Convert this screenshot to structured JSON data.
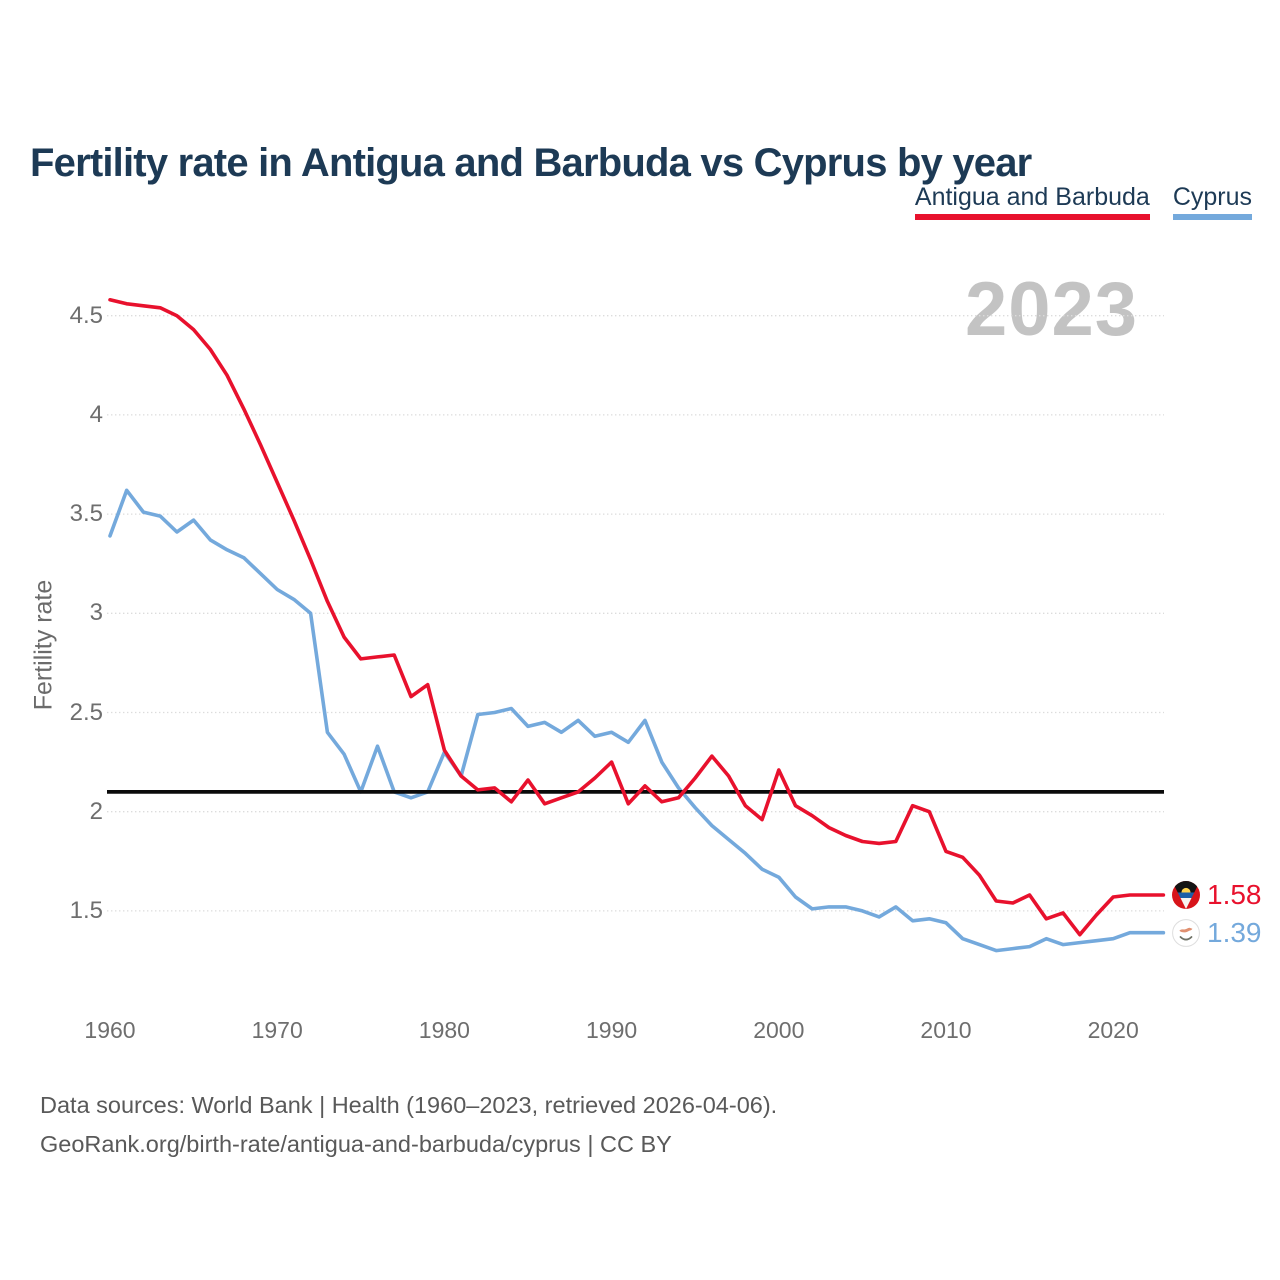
{
  "title": "Fertility rate in Antigua and Barbuda vs Cyprus by year",
  "watermark": {
    "text": "2023"
  },
  "legend": [
    {
      "label": "Antigua and Barbuda",
      "color": "#e8112d"
    },
    {
      "label": "Cyprus",
      "color": "#74a9dc"
    }
  ],
  "y_axis": {
    "label": "Fertility rate",
    "ticks": [
      {
        "value": 4.5,
        "label": "4.5"
      },
      {
        "value": 4.0,
        "label": "4"
      },
      {
        "value": 3.5,
        "label": "3.5"
      },
      {
        "value": 3.0,
        "label": "3"
      },
      {
        "value": 2.5,
        "label": "2.5"
      },
      {
        "value": 2.0,
        "label": "2"
      },
      {
        "value": 1.5,
        "label": "1.5"
      }
    ]
  },
  "x_axis": {
    "ticks": [
      {
        "value": 1960,
        "label": "1960"
      },
      {
        "value": 1970,
        "label": "1970"
      },
      {
        "value": 1980,
        "label": "1980"
      },
      {
        "value": 1990,
        "label": "1990"
      },
      {
        "value": 2000,
        "label": "2000"
      },
      {
        "value": 2010,
        "label": "2010"
      },
      {
        "value": 2020,
        "label": "2020"
      }
    ]
  },
  "end_labels": {
    "antigua": {
      "value": "1.58",
      "color": "#e8112d",
      "flag": "antigua-and-barbuda"
    },
    "cyprus": {
      "value": "1.39",
      "color": "#74a9dc",
      "flag": "cyprus"
    }
  },
  "footer": {
    "line1": "Data sources: World Bank | Health (1960–2023, retrieved 2026-04-06).",
    "line2": "GeoRank.org/birth-rate/antigua-and-barbuda/cyprus | CC BY"
  },
  "chart_data": {
    "type": "line",
    "title": "Fertility rate in Antigua and Barbuda vs Cyprus by year",
    "xlabel": "",
    "ylabel": "Fertility rate",
    "xlim": [
      1960,
      2023
    ],
    "ylim": [
      1.15,
      4.75
    ],
    "grid": "horizontal-dotted",
    "legend_position": "top-right",
    "threshold_line": {
      "value": 2.1,
      "color": "#0b0b0b"
    },
    "x": [
      1960,
      1961,
      1962,
      1963,
      1964,
      1965,
      1966,
      1967,
      1968,
      1969,
      1970,
      1971,
      1972,
      1973,
      1974,
      1975,
      1976,
      1977,
      1978,
      1979,
      1980,
      1981,
      1982,
      1983,
      1984,
      1985,
      1986,
      1987,
      1988,
      1989,
      1990,
      1991,
      1992,
      1993,
      1994,
      1995,
      1996,
      1997,
      1998,
      1999,
      2000,
      2001,
      2002,
      2003,
      2004,
      2005,
      2006,
      2007,
      2008,
      2009,
      2010,
      2011,
      2012,
      2013,
      2014,
      2015,
      2016,
      2017,
      2018,
      2019,
      2020,
      2021,
      2022,
      2023
    ],
    "series": [
      {
        "name": "Antigua and Barbuda",
        "color": "#e8112d",
        "end_value": 1.58,
        "values": [
          4.58,
          4.56,
          4.55,
          4.54,
          4.5,
          4.43,
          4.33,
          4.2,
          4.03,
          3.85,
          3.66,
          3.47,
          3.27,
          3.06,
          2.88,
          2.77,
          2.78,
          2.79,
          2.58,
          2.64,
          2.31,
          2.18,
          2.11,
          2.12,
          2.05,
          2.16,
          2.04,
          2.07,
          2.1,
          2.17,
          2.25,
          2.04,
          2.13,
          2.05,
          2.07,
          2.17,
          2.28,
          2.18,
          2.03,
          1.96,
          2.21,
          2.03,
          1.98,
          1.92,
          1.88,
          1.85,
          1.84,
          1.85,
          2.03,
          2.0,
          1.8,
          1.77,
          1.68,
          1.55,
          1.54,
          1.58,
          1.46,
          1.49,
          1.38,
          1.48,
          1.57,
          1.58,
          1.58,
          1.58
        ]
      },
      {
        "name": "Cyprus",
        "color": "#74a9dc",
        "end_value": 1.39,
        "values": [
          3.39,
          3.62,
          3.51,
          3.49,
          3.41,
          3.47,
          3.37,
          3.32,
          3.28,
          3.2,
          3.12,
          3.07,
          3.0,
          2.4,
          2.29,
          2.1,
          2.33,
          2.1,
          2.07,
          2.1,
          2.3,
          2.18,
          2.49,
          2.5,
          2.52,
          2.43,
          2.45,
          2.4,
          2.46,
          2.38,
          2.4,
          2.35,
          2.46,
          2.25,
          2.12,
          2.02,
          1.93,
          1.86,
          1.79,
          1.71,
          1.67,
          1.57,
          1.51,
          1.52,
          1.52,
          1.5,
          1.47,
          1.52,
          1.45,
          1.46,
          1.44,
          1.36,
          1.33,
          1.3,
          1.31,
          1.32,
          1.36,
          1.33,
          1.34,
          1.35,
          1.36,
          1.39,
          1.39,
          1.39
        ]
      }
    ]
  }
}
